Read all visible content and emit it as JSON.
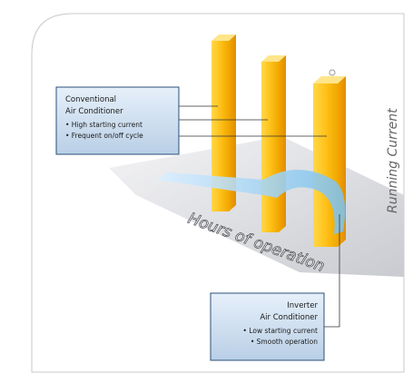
{
  "conventional": {
    "title_lines": [
      "Conventional",
      "Air Conditioner"
    ],
    "bullets": [
      "• High starting current",
      "• Frequent on/off cycle"
    ]
  },
  "inverter": {
    "title_lines": [
      "Inverter",
      "Air Conditioner"
    ],
    "bullets": [
      "• Low starting current",
      "• Smooth operation"
    ]
  },
  "axes": {
    "x_label": "Hours of operation",
    "y_label": "Running Current"
  }
}
